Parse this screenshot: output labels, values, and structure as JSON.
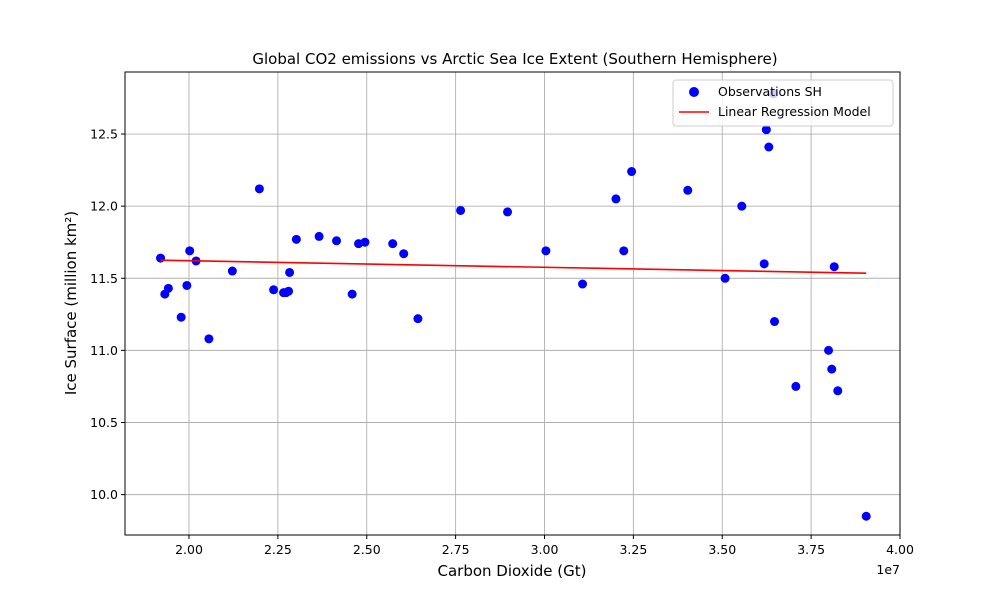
{
  "chart_data": {
    "type": "scatter",
    "title": "Global CO2 emissions vs Arctic Sea Ice Extent (Southern Hemisphere)",
    "xlabel": "Carbon Dioxide (Gt)",
    "ylabel": "Ice Surface (million km²)",
    "x_offset_label": "1e7",
    "xlim": [
      18200000,
      40000000
    ],
    "ylim": [
      9.72,
      12.93
    ],
    "x_ticks": [
      20000000,
      22500000,
      25000000,
      27500000,
      30000000,
      32500000,
      35000000,
      37500000,
      40000000
    ],
    "x_tick_labels": [
      "2.00",
      "2.25",
      "2.50",
      "2.75",
      "3.00",
      "3.25",
      "3.50",
      "3.75",
      "4.00"
    ],
    "y_ticks": [
      10.0,
      10.5,
      11.0,
      11.5,
      12.0,
      12.5
    ],
    "y_tick_labels": [
      "10.0",
      "10.5",
      "11.0",
      "11.5",
      "12.0",
      "12.5"
    ],
    "grid": true,
    "legend_position": "top-right",
    "series": [
      {
        "name": "Observations SH",
        "kind": "scatter",
        "color": "#0000ff",
        "points": [
          [
            19200000,
            11.64
          ],
          [
            19320000,
            11.39
          ],
          [
            19420000,
            11.43
          ],
          [
            19780000,
            11.23
          ],
          [
            19940000,
            11.45
          ],
          [
            20020000,
            11.69
          ],
          [
            20200000,
            11.62
          ],
          [
            20560000,
            11.08
          ],
          [
            21220000,
            11.55
          ],
          [
            21980000,
            12.12
          ],
          [
            22380000,
            11.42
          ],
          [
            22660000,
            11.4
          ],
          [
            22730000,
            11.4
          ],
          [
            22800000,
            11.41
          ],
          [
            22830000,
            11.54
          ],
          [
            23020000,
            11.77
          ],
          [
            23660000,
            11.79
          ],
          [
            24150000,
            11.76
          ],
          [
            24590000,
            11.39
          ],
          [
            24770000,
            11.74
          ],
          [
            24950000,
            11.75
          ],
          [
            25730000,
            11.74
          ],
          [
            26040000,
            11.67
          ],
          [
            26440000,
            11.22
          ],
          [
            27640000,
            11.97
          ],
          [
            28960000,
            11.96
          ],
          [
            30040000,
            11.69
          ],
          [
            31070000,
            11.46
          ],
          [
            32010000,
            12.05
          ],
          [
            32230000,
            11.69
          ],
          [
            32450000,
            12.24
          ],
          [
            34030000,
            12.11
          ],
          [
            35080000,
            11.5
          ],
          [
            35550000,
            12.0
          ],
          [
            36180000,
            11.6
          ],
          [
            36240000,
            12.53
          ],
          [
            36310000,
            12.41
          ],
          [
            36440000,
            12.78
          ],
          [
            36470000,
            11.2
          ],
          [
            37070000,
            10.75
          ],
          [
            37990000,
            11.0
          ],
          [
            38080000,
            10.87
          ],
          [
            38150000,
            11.58
          ],
          [
            38250000,
            10.72
          ],
          [
            39050000,
            9.85
          ]
        ]
      },
      {
        "name": "Linear Regression Model",
        "kind": "line",
        "color": "#ff0000",
        "points": [
          [
            19200000,
            11.625
          ],
          [
            39050000,
            11.535
          ]
        ]
      }
    ]
  }
}
